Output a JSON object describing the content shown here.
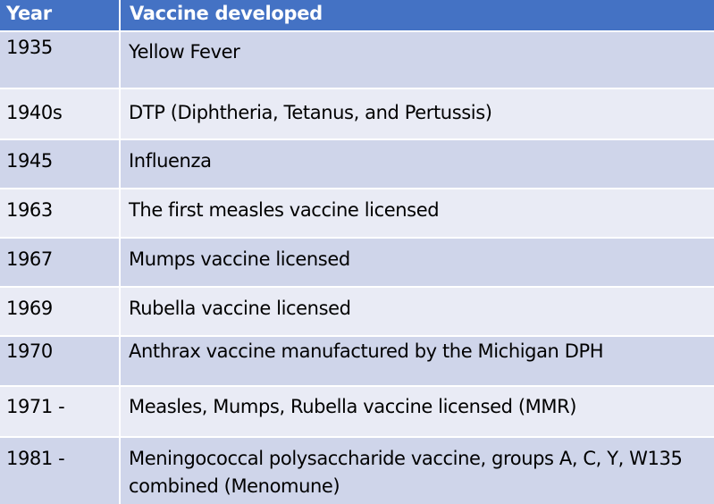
{
  "table": {
    "headers": {
      "year": "Year",
      "vaccine": "Vaccine developed"
    },
    "rows": [
      {
        "year": "1935",
        "vaccine": "Yellow Fever"
      },
      {
        "year": "1940s",
        "vaccine": "DTP (Diphtheria, Tetanus, and Pertussis)"
      },
      {
        "year": "1945",
        "vaccine": "Influenza"
      },
      {
        "year": "1963",
        "vaccine": "The first measles vaccine licensed"
      },
      {
        "year": "1967",
        "vaccine": "Mumps vaccine licensed"
      },
      {
        "year": "1969",
        "vaccine": "Rubella vaccine licensed"
      },
      {
        "year": "1970",
        "vaccine": "Anthrax vaccine manufactured by the Michigan DPH"
      },
      {
        "year": "1971 -",
        "vaccine": "Measles, Mumps, Rubella vaccine licensed (MMR)"
      },
      {
        "year": "1981 -",
        "vaccine": "Meningococcal polysaccharide vaccine, groups A, C, Y, W135 combined (Menomune)"
      }
    ]
  },
  "colors": {
    "header_background": "#4472c4",
    "row_dark": "#cfd5ea",
    "row_light": "#e9ebf5",
    "header_text": "#ffffff"
  }
}
